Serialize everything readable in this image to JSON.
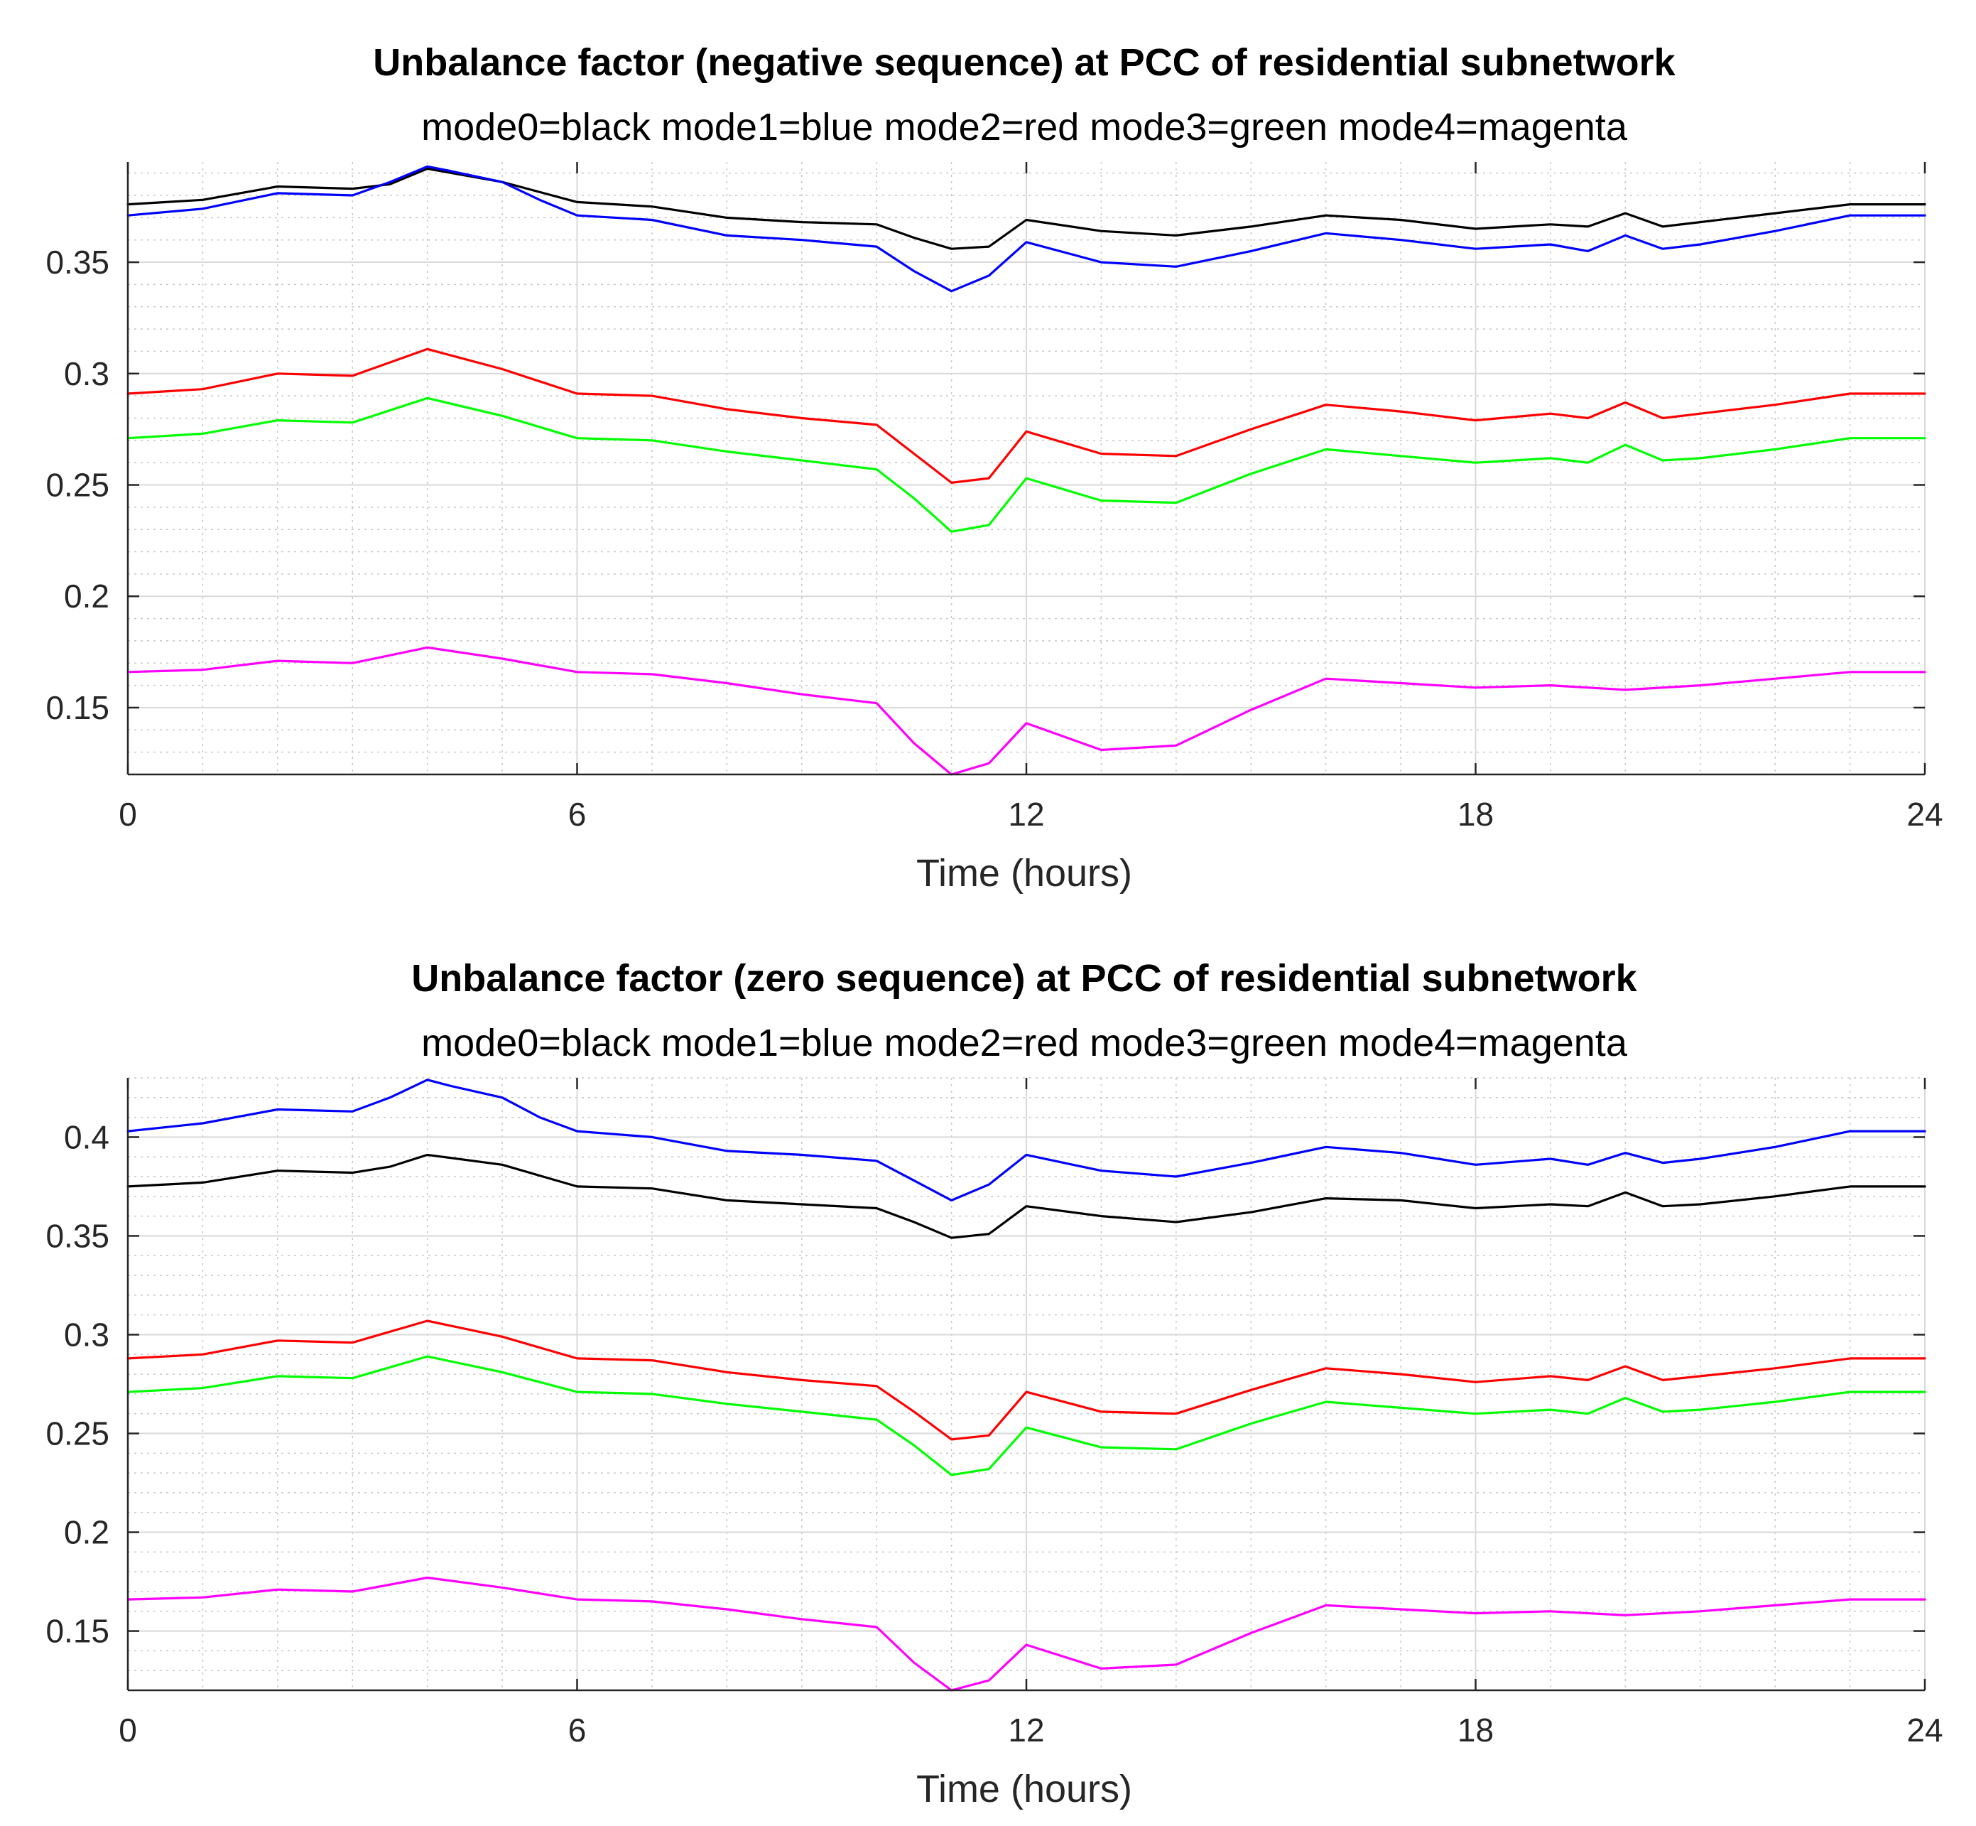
{
  "chart_data": [
    {
      "type": "line",
      "title": "Unbalance factor (negative sequence) at PCC of residential subnetwork",
      "subtitle": "mode0=black mode1=blue mode2=red mode3=green mode4=magenta",
      "xlabel": "Time (hours)",
      "ylabel": "",
      "xlim": [
        0,
        24
      ],
      "ylim": [
        0.12,
        0.395
      ],
      "xticks": [
        0,
        6,
        12,
        18,
        24
      ],
      "xtick_labels": [
        "0",
        "6",
        "12",
        "18",
        "24"
      ],
      "yticks": [
        0.15,
        0.2,
        0.25,
        0.3,
        0.35
      ],
      "ytick_labels": [
        "0.15",
        "0.2",
        "0.25",
        "0.3",
        "0.35"
      ],
      "grid": true,
      "series": [
        {
          "color": "#000000",
          "x": [
            0,
            1,
            2,
            3,
            3.5,
            4,
            5,
            6,
            7,
            8,
            9,
            10,
            10.5,
            11,
            11.5,
            12,
            13,
            14,
            15,
            16,
            17,
            18,
            19,
            19.5,
            20,
            20.5,
            21,
            22,
            23,
            24
          ],
          "y": [
            0.376,
            0.378,
            0.384,
            0.383,
            0.385,
            0.392,
            0.386,
            0.377,
            0.375,
            0.37,
            0.368,
            0.367,
            0.361,
            0.356,
            0.357,
            0.369,
            0.364,
            0.362,
            0.366,
            0.371,
            0.369,
            0.365,
            0.367,
            0.366,
            0.372,
            0.366,
            0.368,
            0.372,
            0.376,
            0.376
          ]
        },
        {
          "color": "#0000ff",
          "x": [
            0,
            1,
            2,
            3,
            3.5,
            4,
            4.3,
            5,
            5.5,
            6,
            7,
            8,
            9,
            10,
            10.5,
            11,
            11.5,
            12,
            13,
            14,
            15,
            16,
            17,
            18,
            19,
            19.5,
            20,
            20.5,
            21,
            22,
            23,
            24
          ],
          "y": [
            0.371,
            0.374,
            0.381,
            0.38,
            0.386,
            0.393,
            0.391,
            0.386,
            0.378,
            0.371,
            0.369,
            0.362,
            0.36,
            0.357,
            0.346,
            0.337,
            0.344,
            0.359,
            0.35,
            0.348,
            0.355,
            0.363,
            0.36,
            0.356,
            0.358,
            0.355,
            0.362,
            0.356,
            0.358,
            0.364,
            0.371,
            0.371
          ]
        },
        {
          "color": "#ff0000",
          "x": [
            0,
            1,
            2,
            3,
            4,
            5,
            6,
            7,
            8,
            9,
            10,
            10.5,
            11,
            11.5,
            12,
            13,
            14,
            15,
            16,
            17,
            18,
            19,
            19.5,
            20,
            20.5,
            21,
            22,
            23,
            24
          ],
          "y": [
            0.291,
            0.293,
            0.3,
            0.299,
            0.311,
            0.302,
            0.291,
            0.29,
            0.284,
            0.28,
            0.277,
            0.264,
            0.251,
            0.253,
            0.274,
            0.264,
            0.263,
            0.275,
            0.286,
            0.283,
            0.279,
            0.282,
            0.28,
            0.287,
            0.28,
            0.282,
            0.286,
            0.291,
            0.291
          ]
        },
        {
          "color": "#00ff00",
          "x": [
            0,
            1,
            2,
            3,
            4,
            5,
            6,
            7,
            8,
            9,
            10,
            10.5,
            11,
            11.5,
            12,
            13,
            14,
            15,
            16,
            17,
            18,
            19,
            19.5,
            20,
            20.5,
            21,
            22,
            23,
            24
          ],
          "y": [
            0.271,
            0.273,
            0.279,
            0.278,
            0.289,
            0.281,
            0.271,
            0.27,
            0.265,
            0.261,
            0.257,
            0.244,
            0.229,
            0.232,
            0.253,
            0.243,
            0.242,
            0.255,
            0.266,
            0.263,
            0.26,
            0.262,
            0.26,
            0.268,
            0.261,
            0.262,
            0.266,
            0.271,
            0.271
          ]
        },
        {
          "color": "#ff00ff",
          "x": [
            0,
            1,
            2,
            3,
            4,
            5,
            6,
            7,
            8,
            9,
            10,
            10.5,
            11,
            11.5,
            12,
            13,
            14,
            15,
            16,
            17,
            18,
            19,
            20,
            21,
            22,
            23,
            24
          ],
          "y": [
            0.166,
            0.167,
            0.171,
            0.17,
            0.177,
            0.172,
            0.166,
            0.165,
            0.161,
            0.156,
            0.152,
            0.134,
            0.12,
            0.125,
            0.143,
            0.131,
            0.133,
            0.149,
            0.163,
            0.161,
            0.159,
            0.16,
            0.158,
            0.16,
            0.163,
            0.166,
            0.166
          ]
        }
      ]
    },
    {
      "type": "line",
      "title": "Unbalance factor (zero sequence) at PCC of residential subnetwork",
      "subtitle": "mode0=black mode1=blue mode2=red mode3=green mode4=magenta",
      "xlabel": "Time (hours)",
      "ylabel": "",
      "xlim": [
        0,
        24
      ],
      "ylim": [
        0.12,
        0.43
      ],
      "xticks": [
        0,
        6,
        12,
        18,
        24
      ],
      "xtick_labels": [
        "0",
        "6",
        "12",
        "18",
        "24"
      ],
      "yticks": [
        0.15,
        0.2,
        0.25,
        0.3,
        0.35,
        0.4
      ],
      "ytick_labels": [
        "0.15",
        "0.2",
        "0.25",
        "0.3",
        "0.35",
        "0.4"
      ],
      "grid": true,
      "series": [
        {
          "color": "#0000ff",
          "x": [
            0,
            1,
            2,
            3,
            3.5,
            4,
            4.3,
            5,
            5.5,
            6,
            7,
            8,
            9,
            10,
            10.5,
            11,
            11.5,
            12,
            13,
            14,
            15,
            16,
            17,
            18,
            19,
            19.5,
            20,
            20.5,
            21,
            22,
            23,
            24
          ],
          "y": [
            0.403,
            0.407,
            0.414,
            0.413,
            0.42,
            0.429,
            0.426,
            0.42,
            0.41,
            0.403,
            0.4,
            0.393,
            0.391,
            0.388,
            0.378,
            0.368,
            0.376,
            0.391,
            0.383,
            0.38,
            0.387,
            0.395,
            0.392,
            0.386,
            0.389,
            0.386,
            0.392,
            0.387,
            0.389,
            0.395,
            0.403,
            0.403
          ]
        },
        {
          "color": "#000000",
          "x": [
            0,
            1,
            2,
            3,
            3.5,
            4,
            5,
            6,
            7,
            8,
            9,
            10,
            10.5,
            11,
            11.5,
            12,
            13,
            14,
            15,
            16,
            17,
            18,
            19,
            19.5,
            20,
            20.5,
            21,
            22,
            23,
            24
          ],
          "y": [
            0.375,
            0.377,
            0.383,
            0.382,
            0.385,
            0.391,
            0.386,
            0.375,
            0.374,
            0.368,
            0.366,
            0.364,
            0.357,
            0.349,
            0.351,
            0.365,
            0.36,
            0.357,
            0.362,
            0.369,
            0.368,
            0.364,
            0.366,
            0.365,
            0.372,
            0.365,
            0.366,
            0.37,
            0.375,
            0.375
          ]
        },
        {
          "color": "#ff0000",
          "x": [
            0,
            1,
            2,
            3,
            4,
            5,
            6,
            7,
            8,
            9,
            10,
            10.5,
            11,
            11.5,
            12,
            13,
            14,
            15,
            16,
            17,
            18,
            19,
            19.5,
            20,
            20.5,
            21,
            22,
            23,
            24
          ],
          "y": [
            0.288,
            0.29,
            0.297,
            0.296,
            0.307,
            0.299,
            0.288,
            0.287,
            0.281,
            0.277,
            0.274,
            0.261,
            0.247,
            0.249,
            0.271,
            0.261,
            0.26,
            0.272,
            0.283,
            0.28,
            0.276,
            0.279,
            0.277,
            0.284,
            0.277,
            0.279,
            0.283,
            0.288,
            0.288
          ]
        },
        {
          "color": "#00ff00",
          "x": [
            0,
            1,
            2,
            3,
            4,
            5,
            6,
            7,
            8,
            9,
            10,
            10.5,
            11,
            11.5,
            12,
            13,
            14,
            15,
            16,
            17,
            18,
            19,
            19.5,
            20,
            20.5,
            21,
            22,
            23,
            24
          ],
          "y": [
            0.271,
            0.273,
            0.279,
            0.278,
            0.289,
            0.281,
            0.271,
            0.27,
            0.265,
            0.261,
            0.257,
            0.244,
            0.229,
            0.232,
            0.253,
            0.243,
            0.242,
            0.255,
            0.266,
            0.263,
            0.26,
            0.262,
            0.26,
            0.268,
            0.261,
            0.262,
            0.266,
            0.271,
            0.271
          ]
        },
        {
          "color": "#ff00ff",
          "x": [
            0,
            1,
            2,
            3,
            4,
            5,
            6,
            7,
            8,
            9,
            10,
            10.5,
            11,
            11.5,
            12,
            13,
            14,
            15,
            16,
            17,
            18,
            19,
            20,
            21,
            22,
            23,
            24
          ],
          "y": [
            0.166,
            0.167,
            0.171,
            0.17,
            0.177,
            0.172,
            0.166,
            0.165,
            0.161,
            0.156,
            0.152,
            0.134,
            0.12,
            0.125,
            0.143,
            0.131,
            0.133,
            0.149,
            0.163,
            0.161,
            0.159,
            0.16,
            0.158,
            0.16,
            0.163,
            0.166,
            0.166
          ]
        }
      ]
    }
  ]
}
